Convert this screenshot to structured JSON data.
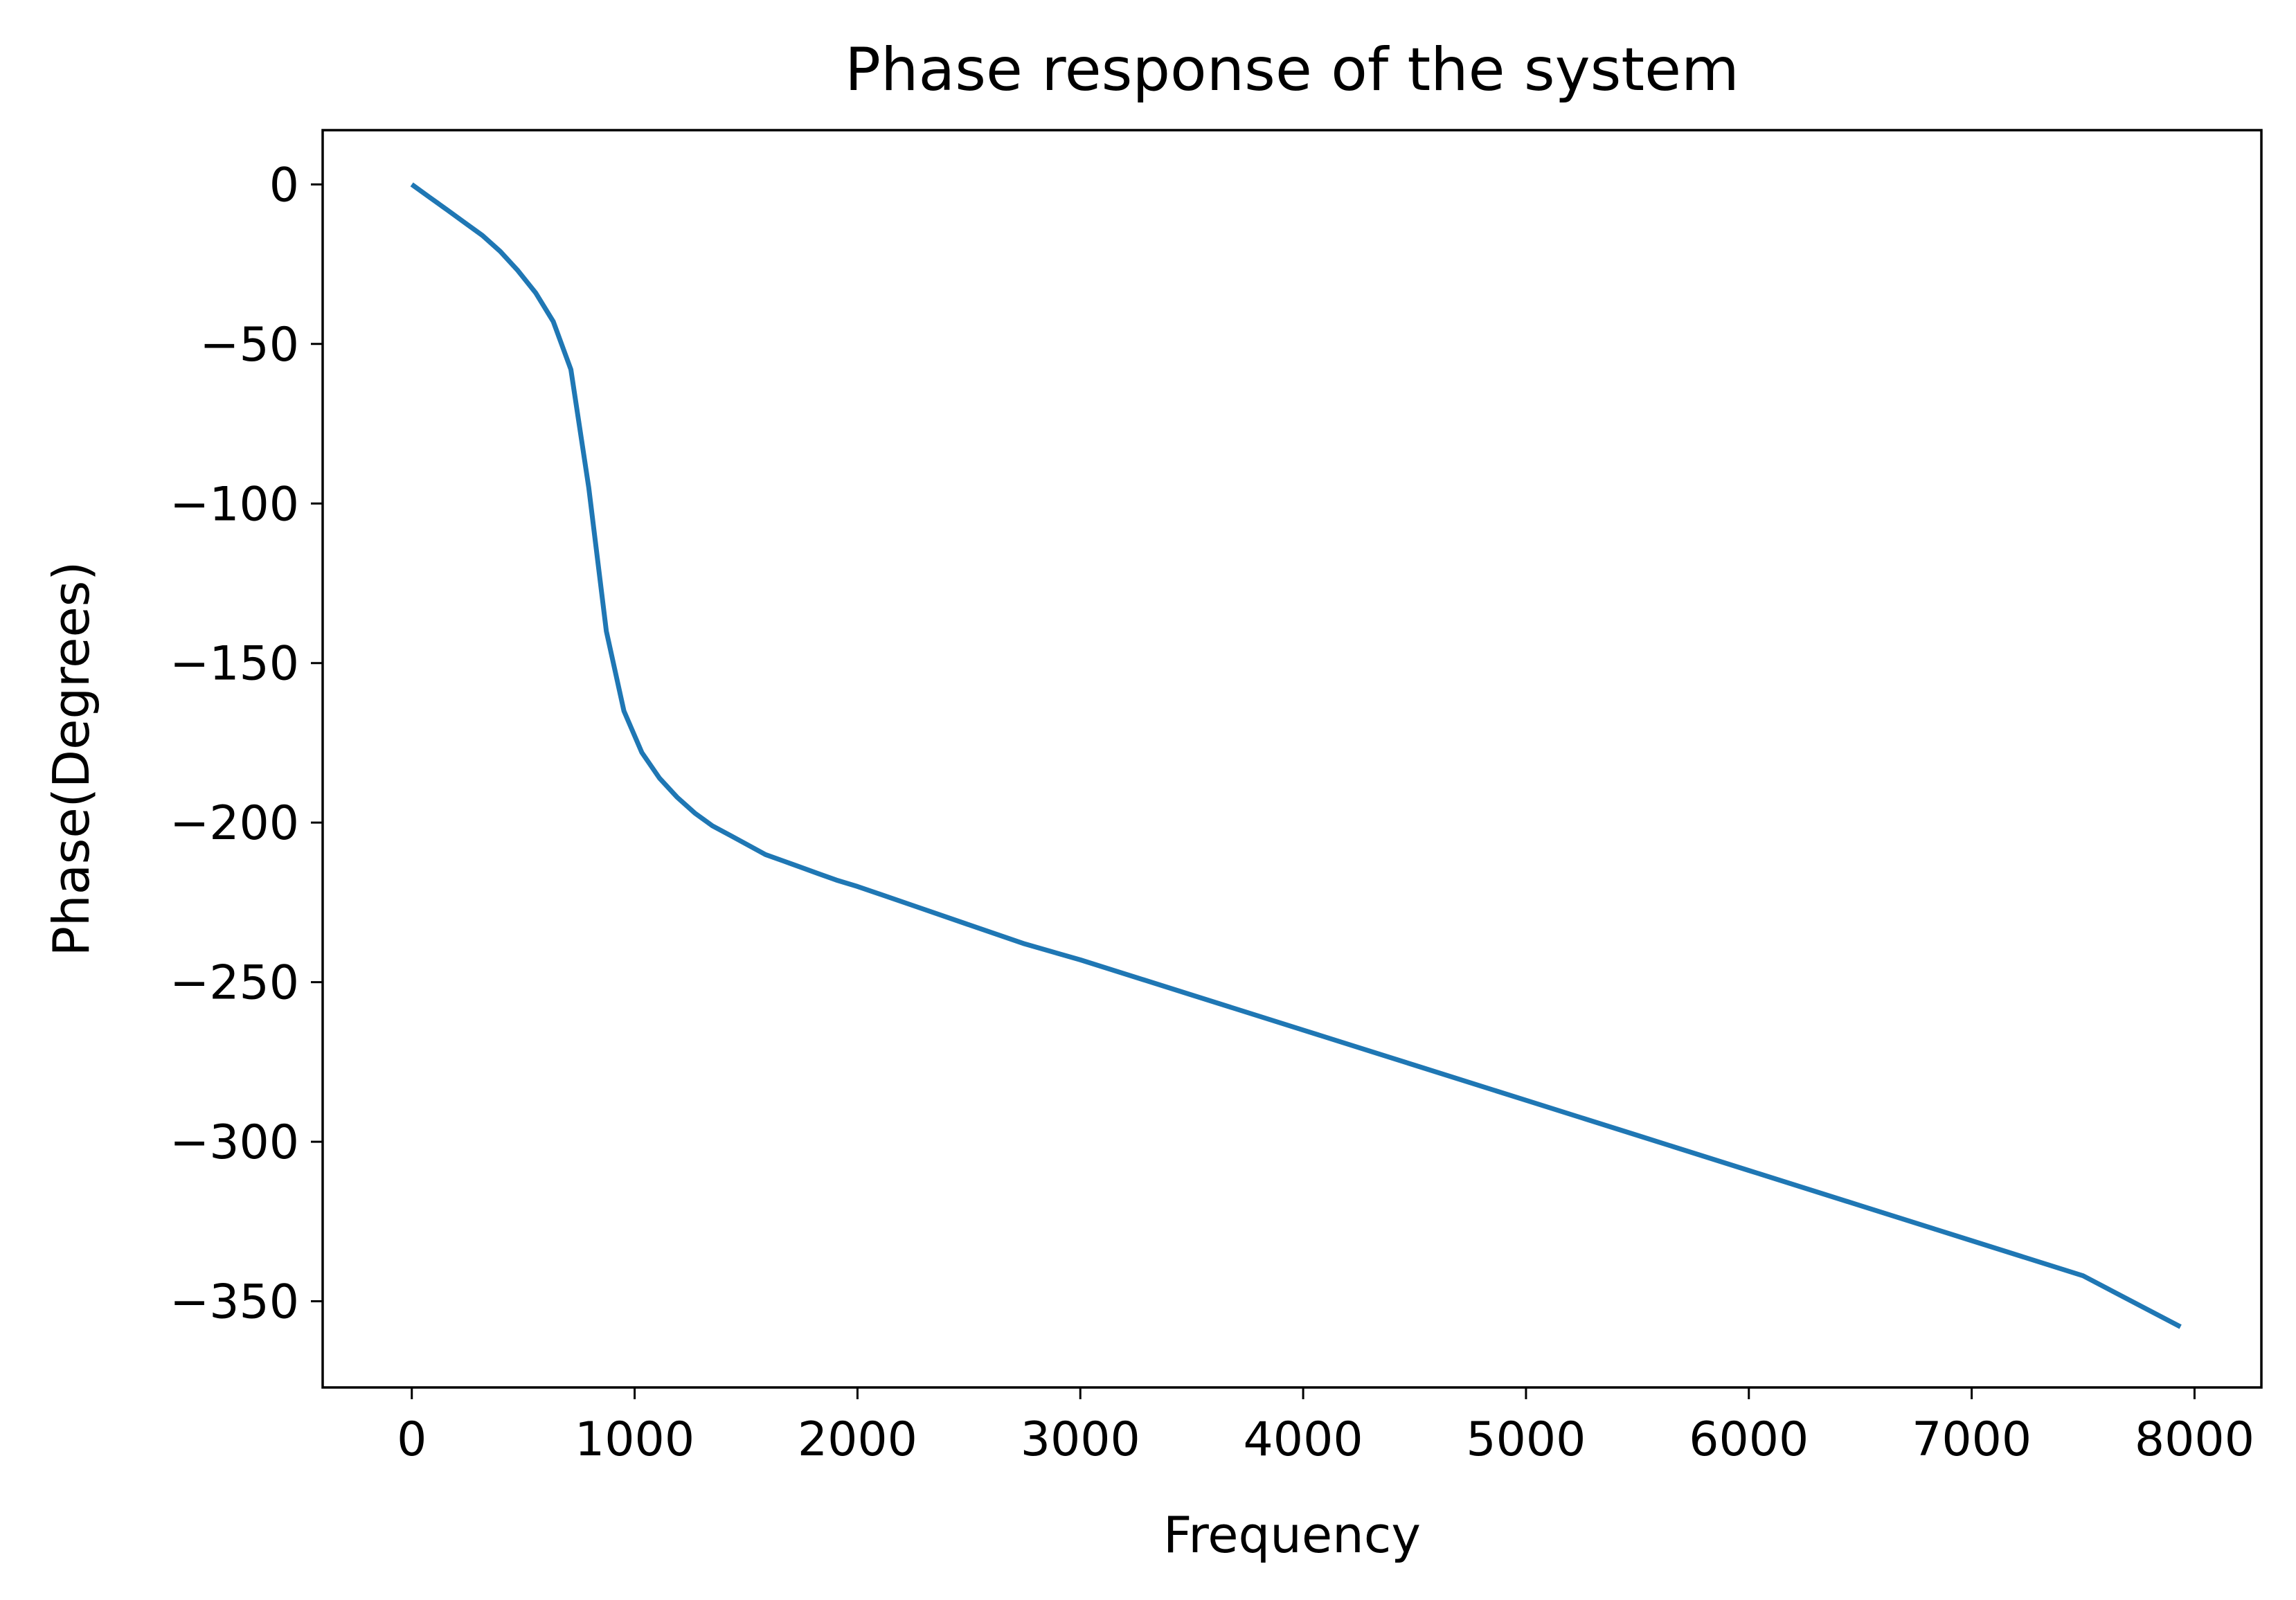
{
  "chart_data": {
    "type": "line",
    "title": "Phase response of the system",
    "xlabel": "Frequency",
    "ylabel": "Phase(Degrees)",
    "xlim": [
      -400,
      8300
    ],
    "ylim": [
      -377,
      17
    ],
    "xticks": [
      0,
      1000,
      2000,
      3000,
      4000,
      5000,
      6000,
      7000,
      8000
    ],
    "xtick_labels": [
      "0",
      "1000",
      "2000",
      "3000",
      "4000",
      "5000",
      "6000",
      "7000",
      "8000"
    ],
    "yticks": [
      0,
      -50,
      -100,
      -150,
      -200,
      -250,
      -300,
      -350
    ],
    "ytick_labels": [
      "0",
      "−50",
      "−100",
      "−150",
      "−200",
      "−250",
      "−300",
      "−350"
    ],
    "grid": false,
    "line_color": "#1f77b4",
    "series": [
      {
        "x": [
          0,
          79,
          159,
          238,
          317,
          397,
          476,
          556,
          635,
          714,
          794,
          873,
          952,
          1032,
          1111,
          1190,
          1270,
          1349,
          1429,
          1508,
          1587,
          1667,
          1746,
          1825,
          1905,
          2000,
          2250,
          2500,
          2750,
          3000,
          3500,
          4000,
          4500,
          5000,
          5500,
          6000,
          6500,
          7000,
          7500,
          7937
        ],
        "y": [
          0,
          -4,
          -8,
          -12,
          -16,
          -21,
          -27,
          -34,
          -43,
          -58,
          -95,
          -140,
          -165,
          -178,
          -186,
          -192,
          -197,
          -201,
          -204,
          -207,
          -210,
          -212,
          -214,
          -216,
          -218,
          -220,
          -226,
          -232,
          -238,
          -243,
          -254,
          -265,
          -276,
          -287,
          -298,
          -309,
          -320,
          -331,
          -342,
          -358
        ]
      }
    ]
  }
}
